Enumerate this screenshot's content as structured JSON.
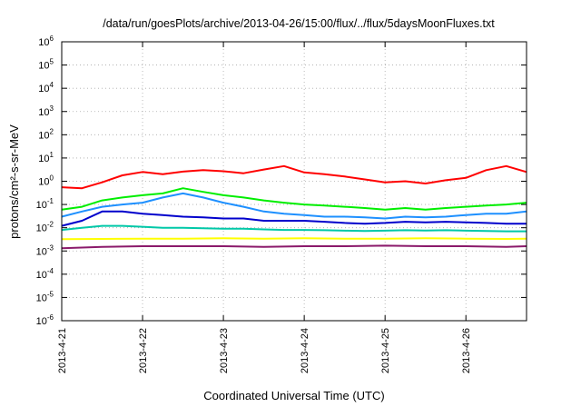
{
  "chart_data": {
    "type": "line",
    "title": "/data/run/goesPlots/archive/2013-04-26/15:00/flux/../flux/5daysMoonFluxes.txt",
    "xlabel": "Coordinated Universal Time (UTC)",
    "ylabel": "protons/cm²-s-sr-MeV",
    "yscale": "log",
    "ylim": [
      1e-06,
      1000000.0
    ],
    "xlim": [
      "2013-04-21T00:00",
      "2013-04-26T18:00"
    ],
    "grid": true,
    "legend": "none",
    "y_ticks": [
      {
        "value": 1e-06,
        "base": "10",
        "exp": "-6"
      },
      {
        "value": 1e-05,
        "base": "10",
        "exp": "-5"
      },
      {
        "value": 0.0001,
        "base": "10",
        "exp": "-4"
      },
      {
        "value": 0.001,
        "base": "10",
        "exp": "-3"
      },
      {
        "value": 0.01,
        "base": "10",
        "exp": "-2"
      },
      {
        "value": 0.1,
        "base": "10",
        "exp": "-1"
      },
      {
        "value": 1.0,
        "base": "10",
        "exp": "0"
      },
      {
        "value": 10.0,
        "base": "10",
        "exp": "1"
      },
      {
        "value": 100.0,
        "base": "10",
        "exp": "2"
      },
      {
        "value": 1000.0,
        "base": "10",
        "exp": "3"
      },
      {
        "value": 10000.0,
        "base": "10",
        "exp": "4"
      },
      {
        "value": 100000.0,
        "base": "10",
        "exp": "5"
      },
      {
        "value": 1000000.0,
        "base": "10",
        "exp": "6"
      }
    ],
    "x_ticks": [
      {
        "value": "2013-04-21T00:00",
        "label": "2013-4-21"
      },
      {
        "value": "2013-04-22T00:00",
        "label": "2013-4-22"
      },
      {
        "value": "2013-04-23T00:00",
        "label": "2013-4-23"
      },
      {
        "value": "2013-04-24T00:00",
        "label": "2013-4-24"
      },
      {
        "value": "2013-04-25T00:00",
        "label": "2013-4-25"
      },
      {
        "value": "2013-04-26T00:00",
        "label": "2013-4-26"
      }
    ],
    "series": [
      {
        "color": "#ff0000",
        "x": [
          "2013-04-21T00:00",
          "2013-04-21T06:00",
          "2013-04-21T12:00",
          "2013-04-21T18:00",
          "2013-04-22T00:00",
          "2013-04-22T06:00",
          "2013-04-22T12:00",
          "2013-04-22T18:00",
          "2013-04-23T00:00",
          "2013-04-23T06:00",
          "2013-04-23T12:00",
          "2013-04-23T18:00",
          "2013-04-24T00:00",
          "2013-04-24T06:00",
          "2013-04-24T12:00",
          "2013-04-24T18:00",
          "2013-04-25T00:00",
          "2013-04-25T06:00",
          "2013-04-25T12:00",
          "2013-04-25T18:00",
          "2013-04-26T00:00",
          "2013-04-26T06:00",
          "2013-04-26T12:00",
          "2013-04-26T18:00"
        ],
        "values": [
          0.55,
          0.5,
          0.9,
          1.8,
          2.5,
          2.0,
          2.6,
          3.0,
          2.7,
          2.2,
          3.2,
          4.5,
          2.4,
          2.0,
          1.6,
          1.2,
          0.9,
          1.0,
          0.8,
          1.1,
          1.4,
          3.0,
          4.5,
          2.5
        ]
      },
      {
        "color": "#00ee00",
        "x": [
          "2013-04-21T00:00",
          "2013-04-21T06:00",
          "2013-04-21T12:00",
          "2013-04-21T18:00",
          "2013-04-22T00:00",
          "2013-04-22T06:00",
          "2013-04-22T12:00",
          "2013-04-22T18:00",
          "2013-04-23T00:00",
          "2013-04-23T06:00",
          "2013-04-23T12:00",
          "2013-04-23T18:00",
          "2013-04-24T00:00",
          "2013-04-24T06:00",
          "2013-04-24T12:00",
          "2013-04-24T18:00",
          "2013-04-25T00:00",
          "2013-04-25T06:00",
          "2013-04-25T12:00",
          "2013-04-25T18:00",
          "2013-04-26T00:00",
          "2013-04-26T06:00",
          "2013-04-26T12:00",
          "2013-04-26T18:00"
        ],
        "values": [
          0.06,
          0.08,
          0.15,
          0.2,
          0.25,
          0.3,
          0.5,
          0.35,
          0.25,
          0.2,
          0.15,
          0.12,
          0.1,
          0.09,
          0.08,
          0.07,
          0.06,
          0.07,
          0.06,
          0.07,
          0.08,
          0.09,
          0.1,
          0.12
        ]
      },
      {
        "color": "#1e90ff",
        "x": [
          "2013-04-21T00:00",
          "2013-04-21T06:00",
          "2013-04-21T12:00",
          "2013-04-21T18:00",
          "2013-04-22T00:00",
          "2013-04-22T06:00",
          "2013-04-22T12:00",
          "2013-04-22T18:00",
          "2013-04-23T00:00",
          "2013-04-23T06:00",
          "2013-04-23T12:00",
          "2013-04-23T18:00",
          "2013-04-24T00:00",
          "2013-04-24T06:00",
          "2013-04-24T12:00",
          "2013-04-24T18:00",
          "2013-04-25T00:00",
          "2013-04-25T06:00",
          "2013-04-25T12:00",
          "2013-04-25T18:00",
          "2013-04-26T00:00",
          "2013-04-26T06:00",
          "2013-04-26T12:00",
          "2013-04-26T18:00"
        ],
        "values": [
          0.03,
          0.05,
          0.08,
          0.1,
          0.12,
          0.2,
          0.3,
          0.2,
          0.12,
          0.08,
          0.05,
          0.04,
          0.035,
          0.03,
          0.03,
          0.028,
          0.025,
          0.03,
          0.028,
          0.03,
          0.035,
          0.04,
          0.04,
          0.05
        ]
      },
      {
        "color": "#0000cc",
        "x": [
          "2013-04-21T00:00",
          "2013-04-21T06:00",
          "2013-04-21T12:00",
          "2013-04-21T18:00",
          "2013-04-22T00:00",
          "2013-04-22T06:00",
          "2013-04-22T12:00",
          "2013-04-22T18:00",
          "2013-04-23T00:00",
          "2013-04-23T06:00",
          "2013-04-23T12:00",
          "2013-04-23T18:00",
          "2013-04-24T00:00",
          "2013-04-24T06:00",
          "2013-04-24T12:00",
          "2013-04-24T18:00",
          "2013-04-25T00:00",
          "2013-04-25T06:00",
          "2013-04-25T12:00",
          "2013-04-25T18:00",
          "2013-04-26T00:00",
          "2013-04-26T06:00",
          "2013-04-26T12:00",
          "2013-04-26T18:00"
        ],
        "values": [
          0.012,
          0.02,
          0.05,
          0.05,
          0.04,
          0.035,
          0.03,
          0.028,
          0.025,
          0.025,
          0.02,
          0.02,
          0.02,
          0.018,
          0.016,
          0.015,
          0.016,
          0.018,
          0.017,
          0.018,
          0.017,
          0.016,
          0.015,
          0.015
        ]
      },
      {
        "color": "#00c8a8",
        "x": [
          "2013-04-21T00:00",
          "2013-04-21T06:00",
          "2013-04-21T12:00",
          "2013-04-21T18:00",
          "2013-04-22T00:00",
          "2013-04-22T06:00",
          "2013-04-22T12:00",
          "2013-04-22T18:00",
          "2013-04-23T00:00",
          "2013-04-23T06:00",
          "2013-04-23T12:00",
          "2013-04-23T18:00",
          "2013-04-24T00:00",
          "2013-04-24T06:00",
          "2013-04-24T12:00",
          "2013-04-24T18:00",
          "2013-04-25T00:00",
          "2013-04-25T06:00",
          "2013-04-25T12:00",
          "2013-04-25T18:00",
          "2013-04-26T00:00",
          "2013-04-26T06:00",
          "2013-04-26T12:00",
          "2013-04-26T18:00"
        ],
        "values": [
          0.008,
          0.01,
          0.012,
          0.012,
          0.011,
          0.01,
          0.01,
          0.0095,
          0.009,
          0.009,
          0.0085,
          0.008,
          0.008,
          0.0078,
          0.0075,
          0.0072,
          0.0075,
          0.0078,
          0.0076,
          0.0078,
          0.0075,
          0.0073,
          0.007,
          0.007
        ]
      },
      {
        "color": "#ffff00",
        "x": [
          "2013-04-21T00:00",
          "2013-04-21T12:00",
          "2013-04-22T00:00",
          "2013-04-22T12:00",
          "2013-04-23T00:00",
          "2013-04-23T12:00",
          "2013-04-24T00:00",
          "2013-04-24T12:00",
          "2013-04-25T00:00",
          "2013-04-25T12:00",
          "2013-04-26T00:00",
          "2013-04-26T12:00",
          "2013-04-26T18:00"
        ],
        "values": [
          0.0032,
          0.0033,
          0.0034,
          0.0034,
          0.0035,
          0.0034,
          0.0035,
          0.0034,
          0.0034,
          0.0035,
          0.0034,
          0.0033,
          0.0034
        ]
      },
      {
        "color": "#8b1a6b",
        "x": [
          "2013-04-21T00:00",
          "2013-04-21T12:00",
          "2013-04-22T00:00",
          "2013-04-22T12:00",
          "2013-04-23T00:00",
          "2013-04-23T12:00",
          "2013-04-24T00:00",
          "2013-04-24T12:00",
          "2013-04-25T00:00",
          "2013-04-25T12:00",
          "2013-04-26T00:00",
          "2013-04-26T12:00",
          "2013-04-26T18:00"
        ],
        "values": [
          0.0013,
          0.0015,
          0.0016,
          0.0016,
          0.0016,
          0.0015,
          0.0016,
          0.0016,
          0.0017,
          0.0016,
          0.0016,
          0.0015,
          0.0016
        ]
      }
    ]
  }
}
